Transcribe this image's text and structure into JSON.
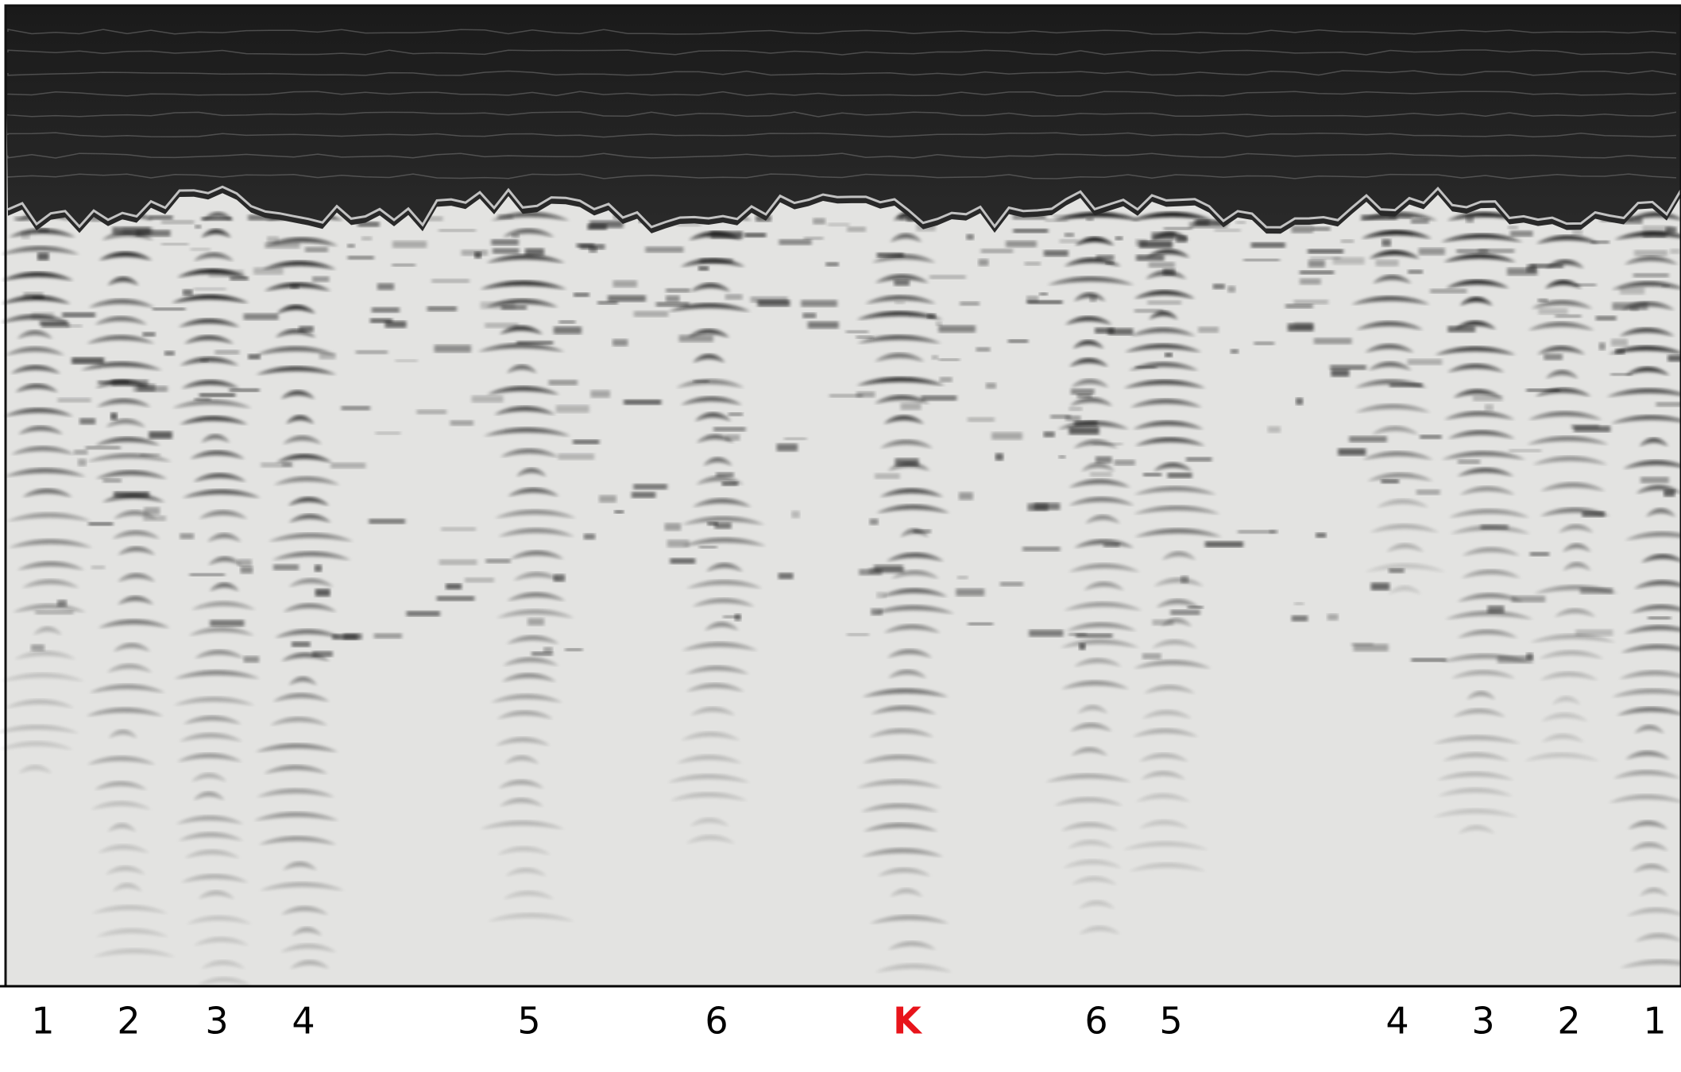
{
  "labels": [
    "1",
    "2",
    "3",
    "4",
    "5",
    "6",
    "K",
    "6",
    "5",
    "4",
    "3",
    "2",
    "1"
  ]
}
